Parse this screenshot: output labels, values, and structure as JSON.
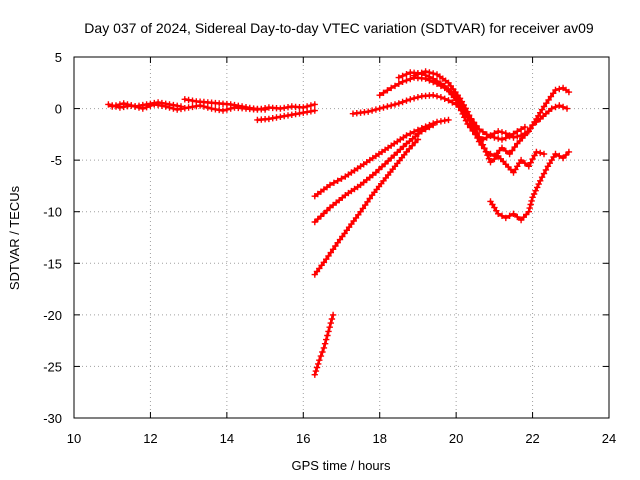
{
  "chart_data": {
    "type": "line",
    "title": "Day 037 of 2024, Sidereal Day-to-day VTEC variation (SDTVAR) for receiver av09",
    "xlabel": "GPS time / hours",
    "ylabel": "SDTVAR / TECUs",
    "xlim": [
      10,
      24
    ],
    "ylim": [
      -30,
      5
    ],
    "xticks": [
      10,
      12,
      14,
      16,
      18,
      20,
      22,
      24
    ],
    "xtick_labels": [
      "10",
      "12",
      "14",
      "16",
      "18",
      "20",
      "22",
      "24"
    ],
    "yticks": [
      5,
      0,
      -5,
      -10,
      -15,
      -20,
      -25,
      -30
    ],
    "ytick_labels": [
      "5",
      "0",
      "-5",
      "-10",
      "-15",
      "-20",
      "-25",
      "-30"
    ],
    "grid": true,
    "marker": "plus",
    "color": "#ff0000",
    "series": [
      {
        "name": "track-1",
        "x": [
          10.9,
          11.2,
          11.5,
          11.8,
          12.1,
          12.4,
          12.7,
          13.0,
          13.3,
          13.6,
          13.9,
          14.2,
          14.5,
          14.8,
          15.1,
          15.4,
          15.7,
          16.0,
          16.3
        ],
        "y": [
          0.4,
          0.1,
          0.3,
          0.0,
          0.4,
          0.2,
          -0.1,
          0.1,
          0.3,
          0.0,
          -0.2,
          0.1,
          0.0,
          -0.1,
          0.1,
          0.0,
          0.2,
          0.1,
          0.4
        ]
      },
      {
        "name": "track-2",
        "x": [
          11.0,
          11.3,
          11.6,
          11.9,
          12.2,
          12.5,
          12.8
        ],
        "y": [
          0.2,
          0.5,
          0.2,
          0.4,
          0.6,
          0.4,
          0.2
        ]
      },
      {
        "name": "track-3",
        "x": [
          12.9,
          13.2,
          13.5,
          13.8,
          14.1,
          14.4,
          14.7,
          15.0
        ],
        "y": [
          0.9,
          0.7,
          0.6,
          0.5,
          0.4,
          0.2,
          0.0,
          -0.1
        ]
      },
      {
        "name": "track-4",
        "x": [
          14.8,
          15.1,
          15.4,
          15.7,
          16.0,
          16.3
        ],
        "y": [
          -1.1,
          -1.0,
          -0.8,
          -0.6,
          -0.4,
          -0.2
        ]
      },
      {
        "name": "track-5",
        "x": [
          17.3,
          17.7,
          18.1,
          18.5,
          18.8,
          19.1,
          19.4,
          19.6,
          19.8,
          20.0,
          20.2,
          20.4,
          20.6,
          20.8,
          21.0,
          21.2,
          21.4,
          21.6,
          21.8
        ],
        "y": [
          -0.5,
          -0.3,
          0.1,
          0.5,
          0.9,
          1.2,
          1.3,
          1.1,
          0.8,
          0.4,
          -0.3,
          -1.0,
          -2.0,
          -2.5,
          -2.8,
          -3.0,
          -2.7,
          -2.2,
          -1.8
        ]
      },
      {
        "name": "track-6",
        "x": [
          18.0,
          18.3,
          18.6,
          18.9,
          19.2,
          19.5,
          19.8,
          20.1,
          20.4,
          20.6,
          20.8,
          21.0,
          21.2,
          21.4,
          21.6,
          21.8,
          22.0,
          22.2,
          22.5,
          22.7,
          22.9
        ],
        "y": [
          1.3,
          2.0,
          2.6,
          3.0,
          2.9,
          2.4,
          1.8,
          0.6,
          -1.5,
          -3.2,
          -4.2,
          -4.6,
          -3.8,
          -4.4,
          -3.4,
          -2.6,
          -1.6,
          -1.0,
          0.0,
          0.3,
          0.0
        ]
      },
      {
        "name": "track-7",
        "x": [
          18.5,
          18.8,
          19.1,
          19.4,
          19.7,
          20.0,
          20.3,
          20.5,
          20.7,
          20.9,
          21.1,
          21.3,
          21.5,
          21.7,
          21.9,
          22.1,
          22.3,
          22.6,
          22.8,
          22.95
        ],
        "y": [
          3.0,
          3.5,
          3.4,
          2.9,
          2.2,
          0.8,
          -1.5,
          -2.5,
          -3.0,
          -2.6,
          -2.2,
          -2.4,
          -2.8,
          -2.6,
          -2.2,
          -1.0,
          0.2,
          1.8,
          2.0,
          1.6
        ]
      },
      {
        "name": "track-8",
        "x": [
          18.9,
          19.2,
          19.5,
          19.8,
          20.1,
          20.3,
          20.5,
          20.7,
          20.9,
          21.1,
          21.3,
          21.5,
          21.7,
          21.9,
          22.1,
          22.3
        ],
        "y": [
          3.2,
          3.6,
          3.3,
          2.5,
          1.0,
          -0.3,
          -2.0,
          -3.5,
          -5.2,
          -4.6,
          -5.4,
          -6.2,
          -5.0,
          -5.6,
          -4.2,
          -4.4
        ]
      },
      {
        "name": "track-9",
        "x": [
          20.9,
          21.1,
          21.3,
          21.5,
          21.7,
          21.9,
          22.0,
          22.2,
          22.4,
          22.6,
          22.8,
          22.95
        ],
        "y": [
          -9.0,
          -10.2,
          -10.6,
          -10.2,
          -10.8,
          -10.0,
          -8.6,
          -7.0,
          -5.6,
          -4.4,
          -4.8,
          -4.2
        ]
      },
      {
        "name": "track-10",
        "x": [
          16.3,
          16.7,
          17.1,
          17.5,
          17.9,
          18.3,
          18.7,
          19.1,
          19.5,
          19.8
        ],
        "y": [
          -8.5,
          -7.4,
          -6.6,
          -5.6,
          -4.6,
          -3.6,
          -2.6,
          -1.9,
          -1.3,
          -1.1
        ]
      },
      {
        "name": "track-11",
        "x": [
          16.3,
          16.7,
          17.1,
          17.5,
          17.9,
          18.3,
          18.7,
          19.1,
          19.4
        ],
        "y": [
          -11.0,
          -9.6,
          -8.4,
          -7.4,
          -6.2,
          -4.8,
          -3.4,
          -2.2,
          -1.6
        ]
      },
      {
        "name": "track-12",
        "x": [
          16.3,
          16.6,
          16.9,
          17.2,
          17.5,
          17.8,
          18.1,
          18.4,
          18.7,
          19.0
        ],
        "y": [
          -16.1,
          -14.6,
          -13.0,
          -11.5,
          -10.0,
          -8.4,
          -7.0,
          -5.6,
          -4.2,
          -3.0
        ]
      },
      {
        "name": "track-13",
        "x": [
          16.3,
          16.42,
          16.54,
          16.66,
          16.78
        ],
        "y": [
          -25.8,
          -24.4,
          -23.2,
          -21.6,
          -20.0
        ]
      }
    ]
  }
}
